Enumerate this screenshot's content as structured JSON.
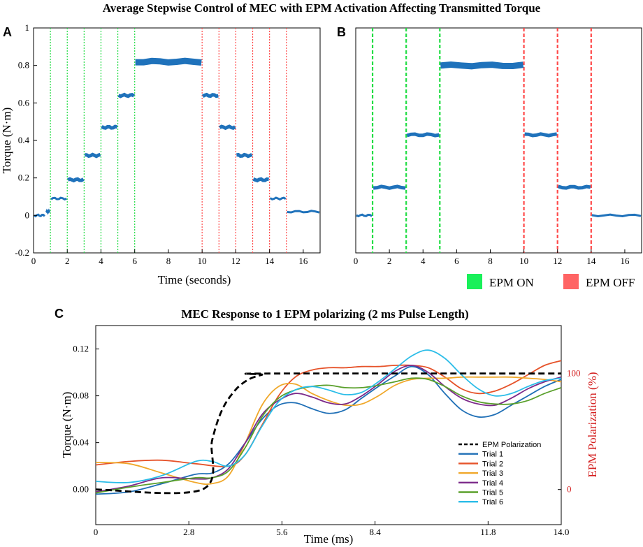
{
  "figure_title": "Average Stepwise Control of MEC with EPM Activation Affecting Transmitted Torque",
  "colors": {
    "data": "#1f72bb",
    "on": "#22dd44",
    "off": "#ff4a4a",
    "on_legend": "#19f05a",
    "off_legend": "#ff6464"
  },
  "legend_top": {
    "on_label": "EPM ON",
    "off_label": "EPM OFF"
  },
  "chart_data": [
    {
      "panel": "A",
      "type": "line",
      "xlabel": "Time (seconds)",
      "ylabel": "Torque (N·m)",
      "xlim": [
        0,
        17
      ],
      "ylim": [
        -0.2,
        1
      ],
      "xticks": [
        0,
        2,
        4,
        6,
        8,
        10,
        12,
        14,
        16
      ],
      "yticks": [
        -0.2,
        0,
        0.2,
        0.4,
        0.6,
        0.8,
        1
      ],
      "grid": false,
      "epm_on_times": [
        1,
        2,
        3,
        4,
        5,
        6
      ],
      "epm_off_times": [
        10,
        11,
        12,
        13,
        14,
        15
      ],
      "steps": [
        {
          "start": 0,
          "end": 0.7,
          "torque": 0.0
        },
        {
          "start": 0.7,
          "end": 1,
          "torque": 0.02
        },
        {
          "start": 1,
          "end": 2,
          "torque": 0.09
        },
        {
          "start": 2,
          "end": 3,
          "torque": 0.19
        },
        {
          "start": 3,
          "end": 4,
          "torque": 0.32
        },
        {
          "start": 4,
          "end": 5,
          "torque": 0.47
        },
        {
          "start": 5,
          "end": 6,
          "torque": 0.64
        },
        {
          "start": 6,
          "end": 10,
          "torque": 0.82
        },
        {
          "start": 10,
          "end": 11,
          "torque": 0.64
        },
        {
          "start": 11,
          "end": 12,
          "torque": 0.47
        },
        {
          "start": 12,
          "end": 13,
          "torque": 0.32
        },
        {
          "start": 13,
          "end": 14,
          "torque": 0.19
        },
        {
          "start": 14,
          "end": 15,
          "torque": 0.09
        },
        {
          "start": 15,
          "end": 17,
          "torque": 0.02
        }
      ]
    },
    {
      "panel": "B",
      "type": "line",
      "xlim": [
        0,
        17
      ],
      "ylim": [
        -0.2,
        1
      ],
      "xticks": [
        0,
        2,
        4,
        6,
        8,
        10,
        12,
        14,
        16
      ],
      "grid": false,
      "epm_on_times": [
        1,
        3,
        5
      ],
      "epm_off_times": [
        10,
        12,
        14
      ],
      "steps": [
        {
          "start": 0,
          "end": 1,
          "torque": 0.0
        },
        {
          "start": 1,
          "end": 3,
          "torque": 0.15
        },
        {
          "start": 3,
          "end": 5,
          "torque": 0.43
        },
        {
          "start": 5,
          "end": 10,
          "torque": 0.8
        },
        {
          "start": 10,
          "end": 12,
          "torque": 0.43
        },
        {
          "start": 12,
          "end": 14,
          "torque": 0.15
        },
        {
          "start": 14,
          "end": 17,
          "torque": 0.0
        }
      ]
    },
    {
      "panel": "C",
      "type": "line",
      "title": "MEC Response to 1 EPM polarizing (2 ms Pulse Length)",
      "xlabel": "Time (ms)",
      "ylabel": "Torque (N·m)",
      "ylabel_right": "EPM Polarization (%)",
      "xlim": [
        0,
        14
      ],
      "ylim": [
        -0.03,
        0.14
      ],
      "xticks": [
        "0",
        "2.8",
        "5.6",
        "8.4",
        "11.8",
        "14.0"
      ],
      "yticks": [
        "0.00",
        "0.04",
        "0.08",
        "0.12"
      ],
      "yticks_right": [
        "0",
        "100"
      ],
      "legend_position": "lower-right",
      "grid": false,
      "series": [
        {
          "name": "EPM Polarization",
          "color": "#000000",
          "dashed": true,
          "x": [
            0,
            3.2,
            3.5,
            3.8,
            4.2,
            4.6,
            5.0,
            5.2,
            14
          ],
          "y": [
            0,
            0,
            0.042,
            0.068,
            0.085,
            0.094,
            0.098,
            0.099,
            0.099
          ]
        },
        {
          "name": "Trial 1",
          "color": "#1f6fb6",
          "x": [
            0,
            1,
            2,
            3,
            3.5,
            4,
            4.5,
            5,
            5.5,
            6,
            6.5,
            7,
            7.5,
            8,
            8.5,
            9,
            9.5,
            10,
            10.5,
            11,
            11.5,
            12,
            12.5,
            13,
            13.5,
            14
          ],
          "y": [
            -0.004,
            -0.002,
            0.005,
            0.013,
            0.014,
            0.022,
            0.04,
            0.06,
            0.072,
            0.074,
            0.069,
            0.065,
            0.068,
            0.078,
            0.088,
            0.097,
            0.105,
            0.098,
            0.082,
            0.068,
            0.062,
            0.064,
            0.072,
            0.08,
            0.088,
            0.094
          ]
        },
        {
          "name": "Trial 2",
          "color": "#e6532a",
          "x": [
            0,
            1,
            2,
            3,
            4,
            4.5,
            5,
            5.5,
            6,
            6.5,
            7,
            7.5,
            8,
            8.5,
            9,
            9.5,
            10,
            10.5,
            11,
            11.5,
            12,
            12.5,
            13,
            13.5,
            14
          ],
          "y": [
            0.021,
            0.024,
            0.025,
            0.022,
            0.02,
            0.03,
            0.055,
            0.08,
            0.096,
            0.102,
            0.104,
            0.104,
            0.105,
            0.105,
            0.106,
            0.106,
            0.104,
            0.096,
            0.086,
            0.082,
            0.084,
            0.09,
            0.098,
            0.106,
            0.11
          ]
        },
        {
          "name": "Trial 3",
          "color": "#f0a82a",
          "x": [
            0,
            1,
            2,
            3,
            3.5,
            4,
            4.5,
            5,
            5.5,
            6,
            6.5,
            7,
            7.5,
            8,
            8.5,
            9,
            9.5,
            10,
            10.5,
            11,
            11.5,
            12,
            12.5,
            13,
            13.5,
            14
          ],
          "y": [
            0.023,
            0.022,
            0.014,
            0.006,
            0.005,
            0.012,
            0.04,
            0.072,
            0.088,
            0.09,
            0.082,
            0.076,
            0.072,
            0.073,
            0.08,
            0.089,
            0.094,
            0.095,
            0.095,
            0.096,
            0.096,
            0.096,
            0.096,
            0.095,
            0.094,
            0.092
          ]
        },
        {
          "name": "Trial 4",
          "color": "#7c2a8a",
          "x": [
            0,
            1,
            2,
            3,
            3.5,
            4,
            4.5,
            5,
            5.5,
            6,
            6.5,
            7,
            7.5,
            8,
            8.5,
            9,
            9.5,
            10,
            10.5,
            11,
            11.5,
            12,
            12.5,
            13,
            13.5,
            14
          ],
          "y": [
            -0.002,
            0.003,
            0.01,
            0.009,
            0.01,
            0.018,
            0.04,
            0.064,
            0.076,
            0.082,
            0.079,
            0.074,
            0.073,
            0.08,
            0.09,
            0.101,
            0.106,
            0.1,
            0.088,
            0.078,
            0.073,
            0.072,
            0.078,
            0.086,
            0.092,
            0.096
          ]
        },
        {
          "name": "Trial 5",
          "color": "#5aa02c",
          "x": [
            0,
            1,
            2,
            3,
            3.5,
            4,
            4.5,
            5,
            5.5,
            6,
            6.5,
            7,
            7.5,
            8,
            8.5,
            9,
            9.5,
            10,
            10.5,
            11,
            11.5,
            12,
            12.5,
            13,
            13.5,
            14
          ],
          "y": [
            -0.003,
            0.002,
            0.006,
            0.01,
            0.01,
            0.016,
            0.036,
            0.062,
            0.078,
            0.085,
            0.088,
            0.089,
            0.087,
            0.087,
            0.089,
            0.092,
            0.095,
            0.094,
            0.088,
            0.08,
            0.075,
            0.073,
            0.073,
            0.076,
            0.082,
            0.087
          ]
        },
        {
          "name": "Trial 6",
          "color": "#2bbde8",
          "x": [
            0,
            1,
            2,
            3,
            3.5,
            4,
            4.5,
            5,
            5.5,
            6,
            6.5,
            7,
            7.5,
            8,
            8.5,
            9,
            9.5,
            10,
            10.5,
            11,
            11.5,
            12,
            12.5,
            13,
            13.5,
            14
          ],
          "y": [
            0.007,
            0.006,
            0.012,
            0.024,
            0.024,
            0.02,
            0.03,
            0.054,
            0.075,
            0.085,
            0.088,
            0.085,
            0.081,
            0.083,
            0.092,
            0.103,
            0.114,
            0.119,
            0.112,
            0.098,
            0.086,
            0.08,
            0.082,
            0.088,
            0.093,
            0.095
          ]
        }
      ]
    }
  ]
}
